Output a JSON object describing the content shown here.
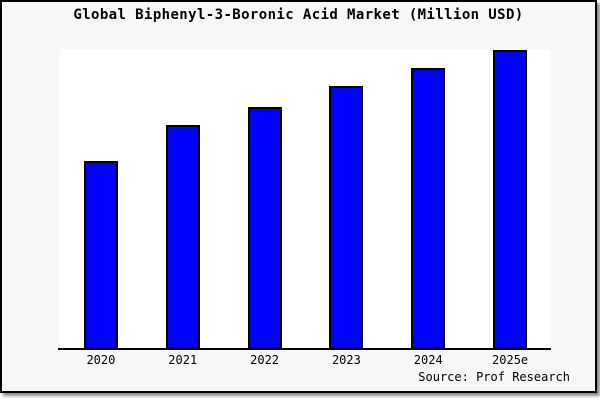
{
  "window": {
    "background_color": "#f7f7f7",
    "border_color": "#000000",
    "plot_background_color": "#ffffff"
  },
  "header": {
    "title": "Global Biphenyl-3-Boronic Acid Market (Million USD)"
  },
  "footer": {
    "source_label": "Source: Prof Research"
  },
  "chart_data": {
    "type": "bar",
    "title": "Global Biphenyl-3-Boronic Acid Market (Million USD)",
    "unit": "Million USD",
    "categories": [
      "2020",
      "2021",
      "2022",
      "2023",
      "2024",
      "2025e"
    ],
    "values_relative_to_max": [
      0.63,
      0.75,
      0.81,
      0.88,
      0.94,
      1.0
    ],
    "series": [
      {
        "name": "Global Biphenyl-3-Boronic Acid Market",
        "values": [
          0.63,
          0.75,
          0.81,
          0.88,
          0.94,
          1.0
        ]
      }
    ],
    "xlabel": "",
    "ylabel": "",
    "y_axis_ticks": "none",
    "gridlines": false,
    "legend": false,
    "bar_color": "#0000ff",
    "bar_border_color": "#000000",
    "axis_color": "#000000",
    "source": "Source: Prof Research"
  }
}
